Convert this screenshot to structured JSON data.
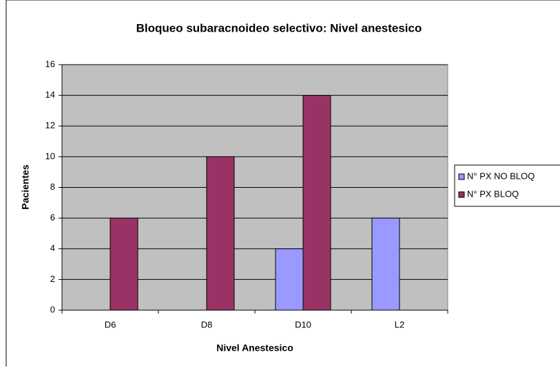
{
  "chart_data": {
    "type": "bar",
    "title": "Bloqueo subaracnoideo selectivo: Nivel anestesico",
    "x_label": "Nivel Anestesico",
    "y_label": "Pacientes",
    "categories": [
      "D6",
      "D8",
      "D10",
      "L2"
    ],
    "series": [
      {
        "name": "N° PX NO BLOQ",
        "color": "#9999ff",
        "values": [
          0,
          0,
          4,
          6
        ]
      },
      {
        "name": "N° PX BLOQ",
        "color": "#993366",
        "values": [
          6,
          10,
          14,
          0
        ]
      }
    ],
    "ylim": [
      0,
      16
    ],
    "yticks": [
      0,
      2,
      4,
      6,
      8,
      10,
      12,
      14,
      16
    ],
    "grid": true,
    "legend": "right",
    "plot_background": "#c0c0c0"
  }
}
